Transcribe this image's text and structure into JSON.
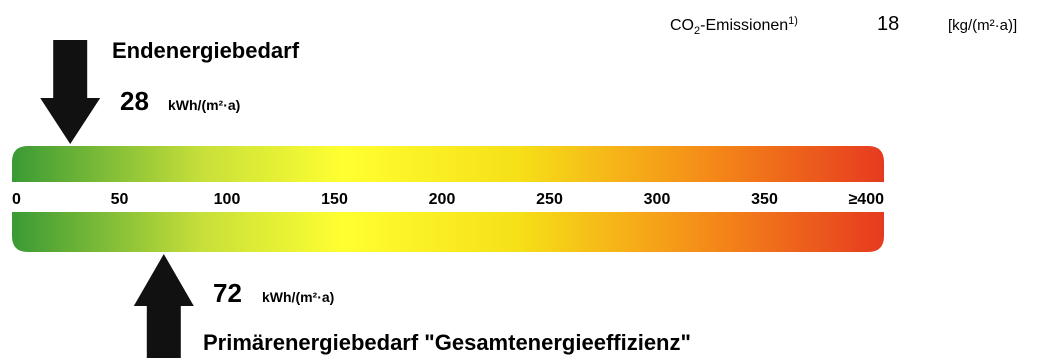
{
  "co2": {
    "label": "CO",
    "label_sub": "2",
    "label_rest": "-Emissionen",
    "footnote": "1)",
    "value": "18",
    "unit": "[kg/(m²·a)]"
  },
  "chart_data": {
    "type": "scale",
    "scale_min": 0,
    "scale_max": 400,
    "ticks": [
      "0",
      "50",
      "100",
      "150",
      "200",
      "250",
      "300",
      "350",
      "≥400"
    ],
    "tick_values": [
      0,
      50,
      100,
      150,
      200,
      250,
      300,
      350,
      400
    ],
    "gradient_colors": [
      "#3a9a35",
      "#c8e03a",
      "#ffff30",
      "#f6e018",
      "#f58a18",
      "#e63a20"
    ],
    "end_energy": {
      "title": "Endenergiebedarf",
      "value": 28,
      "value_text": "28",
      "unit": "kWh/(m²·a)",
      "arrow": "down"
    },
    "primary_energy": {
      "title": "Primärenergiebedarf \"Gesamtenergieeffizienz\"",
      "value": 72,
      "value_text": "72",
      "unit": "kWh/(m²·a)",
      "arrow": "up"
    }
  }
}
